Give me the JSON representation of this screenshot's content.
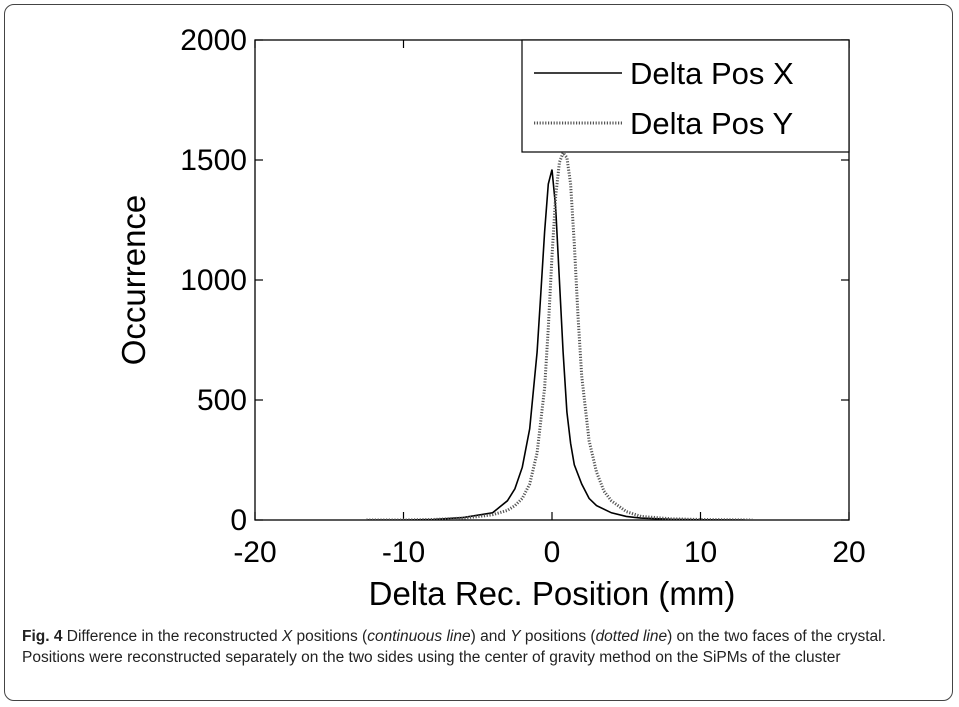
{
  "chart_data": {
    "type": "line",
    "xlabel": "Delta Rec. Position (mm)",
    "ylabel": "Occurrence",
    "xlim": [
      -20,
      20
    ],
    "ylim": [
      0,
      2000
    ],
    "xticks": [
      -20,
      -10,
      0,
      10,
      20
    ],
    "yticks": [
      0,
      500,
      1000,
      1500,
      2000
    ],
    "grid": false,
    "legend_position": "top-right",
    "series": [
      {
        "name": "Delta Pos X",
        "style": "solid",
        "color": "#000000",
        "x": [
          -12.5,
          -10,
          -8,
          -6,
          -5,
          -4,
          -3.5,
          -3,
          -2.5,
          -2,
          -1.5,
          -1,
          -0.75,
          -0.5,
          -0.25,
          0,
          0.25,
          0.5,
          0.75,
          1,
          1.25,
          1.5,
          2,
          2.5,
          3,
          4,
          5,
          6,
          8,
          10,
          13
        ],
        "y": [
          0,
          0,
          2,
          10,
          20,
          30,
          55,
          80,
          130,
          220,
          380,
          700,
          950,
          1200,
          1400,
          1460,
          1300,
          1000,
          700,
          450,
          320,
          230,
          150,
          90,
          60,
          30,
          15,
          8,
          3,
          1,
          0
        ]
      },
      {
        "name": "Delta Pos Y",
        "style": "dotted",
        "color": "#555555",
        "x": [
          -12.5,
          -10,
          -8,
          -6,
          -5,
          -4,
          -3,
          -2.5,
          -2,
          -1.5,
          -1,
          -0.5,
          -0.25,
          0,
          0.25,
          0.5,
          0.75,
          1,
          1.25,
          1.5,
          1.75,
          2,
          2.5,
          3,
          3.5,
          4,
          5,
          6,
          8,
          10,
          13.5
        ],
        "y": [
          0,
          0,
          2,
          8,
          14,
          22,
          40,
          60,
          90,
          150,
          280,
          550,
          800,
          1100,
          1350,
          1490,
          1530,
          1510,
          1400,
          1150,
          850,
          600,
          330,
          200,
          120,
          80,
          35,
          15,
          5,
          2,
          0
        ]
      }
    ]
  },
  "caption": {
    "label": "Fig. 4",
    "t1": " Difference in the reconstructed ",
    "x": "X",
    "t2": " positions (",
    "cont": "continuous line",
    "t3": ") and ",
    "y": "Y",
    "t4": " positions (",
    "dot": "dotted line",
    "t5": ") on the two faces of the crystal. Positions were reconstructed separately on the two sides using the center of gravity method on the SiPMs of the cluster"
  }
}
